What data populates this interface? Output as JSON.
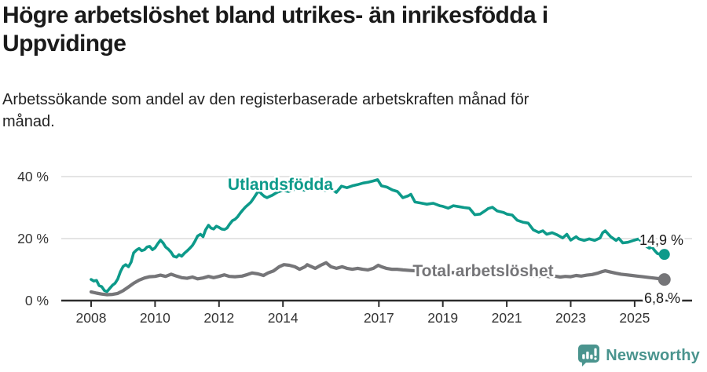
{
  "header": {
    "title": "Högre arbetslöshet bland utrikes- än inrikesfödda i\nUppvidinge",
    "subtitle": "Arbetssökande som andel av den registerbaserade arbetskraften månad för\nmånad."
  },
  "chart_data": {
    "type": "line",
    "title": "Högre arbetslöshet bland utrikes- än inrikesfödda i Uppvidinge",
    "xlabel": "",
    "ylabel": "Arbetssökande som andel av den registerbaserade arbetskraften",
    "x_axis": {
      "range": [
        2008,
        2026
      ],
      "tick_values": [
        2008,
        2010,
        2012,
        2014,
        2017,
        2019,
        2021,
        2023,
        2025
      ],
      "tick_labels": [
        "2008",
        "2010",
        "2012",
        "2014",
        "2017",
        "2019",
        "2021",
        "2023",
        "2025"
      ]
    },
    "y_axis": {
      "range": [
        0,
        42
      ],
      "tick_values": [
        0,
        20,
        40
      ],
      "tick_labels": [
        "0 %",
        "20 %",
        "40 %"
      ],
      "grid": true
    },
    "legend_position": "inline-labels",
    "series": [
      {
        "name": "Utlandsfödda",
        "color": "#0d9a8a",
        "end_label": "14,9 %",
        "end_value": 14.9,
        "points": [
          [
            2008.0,
            6.8
          ],
          [
            2008.08,
            6.3
          ],
          [
            2008.17,
            6.5
          ],
          [
            2008.25,
            4.8
          ],
          [
            2008.33,
            4.5
          ],
          [
            2008.42,
            3.2
          ],
          [
            2008.5,
            2.9
          ],
          [
            2008.58,
            3.9
          ],
          [
            2008.67,
            5.0
          ],
          [
            2008.75,
            5.6
          ],
          [
            2008.83,
            6.9
          ],
          [
            2008.92,
            9.4
          ],
          [
            2009.0,
            11.0
          ],
          [
            2009.08,
            11.6
          ],
          [
            2009.17,
            10.9
          ],
          [
            2009.25,
            12.4
          ],
          [
            2009.33,
            15.4
          ],
          [
            2009.42,
            16.3
          ],
          [
            2009.5,
            16.8
          ],
          [
            2009.58,
            16.1
          ],
          [
            2009.67,
            16.4
          ],
          [
            2009.75,
            17.3
          ],
          [
            2009.83,
            17.5
          ],
          [
            2009.92,
            16.4
          ],
          [
            2010.0,
            17.0
          ],
          [
            2010.08,
            18.3
          ],
          [
            2010.17,
            19.5
          ],
          [
            2010.25,
            18.6
          ],
          [
            2010.33,
            17.3
          ],
          [
            2010.42,
            16.5
          ],
          [
            2010.5,
            15.6
          ],
          [
            2010.58,
            14.3
          ],
          [
            2010.67,
            14.0
          ],
          [
            2010.75,
            14.8
          ],
          [
            2010.83,
            14.3
          ],
          [
            2010.92,
            15.3
          ],
          [
            2011.0,
            16.0
          ],
          [
            2011.08,
            16.8
          ],
          [
            2011.17,
            17.8
          ],
          [
            2011.25,
            19.2
          ],
          [
            2011.33,
            20.8
          ],
          [
            2011.42,
            21.4
          ],
          [
            2011.5,
            20.6
          ],
          [
            2011.58,
            22.8
          ],
          [
            2011.67,
            24.3
          ],
          [
            2011.75,
            23.4
          ],
          [
            2011.83,
            23.1
          ],
          [
            2011.92,
            24.0
          ],
          [
            2012.0,
            23.6
          ],
          [
            2012.08,
            23.1
          ],
          [
            2012.17,
            22.9
          ],
          [
            2012.25,
            23.4
          ],
          [
            2012.33,
            24.6
          ],
          [
            2012.42,
            25.8
          ],
          [
            2012.5,
            26.2
          ],
          [
            2012.58,
            27.0
          ],
          [
            2012.67,
            28.3
          ],
          [
            2012.75,
            29.3
          ],
          [
            2012.83,
            30.2
          ],
          [
            2012.92,
            31.0
          ],
          [
            2013.0,
            31.8
          ],
          [
            2013.08,
            33.0
          ],
          [
            2013.17,
            34.4
          ],
          [
            2013.25,
            35.4
          ],
          [
            2013.33,
            34.4
          ],
          [
            2013.42,
            33.6
          ],
          [
            2013.5,
            33.2
          ],
          [
            2013.58,
            33.6
          ],
          [
            2013.67,
            34.0
          ],
          [
            2013.75,
            34.5
          ],
          [
            2013.83,
            35.0
          ],
          [
            2013.92,
            35.3
          ],
          [
            2014.0,
            35.6
          ],
          [
            2014.17,
            35.2
          ],
          [
            2014.33,
            35.8
          ],
          [
            2014.5,
            36.2
          ],
          [
            2014.67,
            35.6
          ],
          [
            2014.83,
            36.0
          ],
          [
            2015.0,
            36.4
          ],
          [
            2015.17,
            36.0
          ],
          [
            2015.33,
            35.5
          ],
          [
            2015.5,
            36.1
          ],
          [
            2015.67,
            34.9
          ],
          [
            2015.83,
            36.9
          ],
          [
            2016.0,
            36.4
          ],
          [
            2016.17,
            37.0
          ],
          [
            2016.33,
            37.4
          ],
          [
            2016.5,
            37.9
          ],
          [
            2016.67,
            38.2
          ],
          [
            2016.83,
            38.6
          ],
          [
            2016.96,
            39.0
          ],
          [
            2017.08,
            37.0
          ],
          [
            2017.25,
            36.6
          ],
          [
            2017.42,
            35.7
          ],
          [
            2017.58,
            35.2
          ],
          [
            2017.75,
            33.2
          ],
          [
            2017.92,
            33.8
          ],
          [
            2018.0,
            34.3
          ],
          [
            2018.13,
            31.8
          ],
          [
            2018.3,
            31.5
          ],
          [
            2018.5,
            31.1
          ],
          [
            2018.7,
            31.4
          ],
          [
            2018.9,
            30.6
          ],
          [
            2019.0,
            30.4
          ],
          [
            2019.17,
            29.8
          ],
          [
            2019.33,
            30.6
          ],
          [
            2019.5,
            30.3
          ],
          [
            2019.67,
            30.0
          ],
          [
            2019.83,
            29.8
          ],
          [
            2020.0,
            27.7
          ],
          [
            2020.17,
            27.9
          ],
          [
            2020.33,
            29.0
          ],
          [
            2020.42,
            29.7
          ],
          [
            2020.55,
            30.1
          ],
          [
            2020.7,
            28.9
          ],
          [
            2020.9,
            28.4
          ],
          [
            2021.0,
            27.9
          ],
          [
            2021.17,
            27.6
          ],
          [
            2021.33,
            25.9
          ],
          [
            2021.5,
            25.3
          ],
          [
            2021.67,
            25.0
          ],
          [
            2021.83,
            22.8
          ],
          [
            2022.0,
            22.0
          ],
          [
            2022.13,
            22.5
          ],
          [
            2022.25,
            21.4
          ],
          [
            2022.42,
            21.9
          ],
          [
            2022.58,
            21.2
          ],
          [
            2022.75,
            20.2
          ],
          [
            2022.88,
            21.4
          ],
          [
            2023.0,
            19.5
          ],
          [
            2023.17,
            20.6
          ],
          [
            2023.25,
            19.9
          ],
          [
            2023.42,
            19.4
          ],
          [
            2023.58,
            19.9
          ],
          [
            2023.75,
            19.4
          ],
          [
            2023.92,
            20.2
          ],
          [
            2024.0,
            21.9
          ],
          [
            2024.08,
            22.5
          ],
          [
            2024.25,
            20.6
          ],
          [
            2024.42,
            19.4
          ],
          [
            2024.5,
            20.1
          ],
          [
            2024.63,
            18.6
          ],
          [
            2024.79,
            18.8
          ],
          [
            2024.96,
            19.4
          ],
          [
            2025.13,
            19.9
          ],
          [
            2025.29,
            18.2
          ],
          [
            2025.38,
            17.4
          ],
          [
            2025.46,
            16.9
          ],
          [
            2025.54,
            17.3
          ],
          [
            2025.63,
            16.1
          ],
          [
            2025.71,
            15.2
          ],
          [
            2025.83,
            14.8
          ],
          [
            2025.93,
            14.9
          ]
        ]
      },
      {
        "name": "Total arbetslöshet",
        "color": "#757578",
        "end_label": "6,8 %",
        "end_value": 6.8,
        "points": [
          [
            2008.0,
            2.8
          ],
          [
            2008.17,
            2.4
          ],
          [
            2008.33,
            2.1
          ],
          [
            2008.5,
            1.9
          ],
          [
            2008.67,
            2.0
          ],
          [
            2008.83,
            2.3
          ],
          [
            2009.0,
            3.2
          ],
          [
            2009.17,
            4.4
          ],
          [
            2009.33,
            5.6
          ],
          [
            2009.5,
            6.6
          ],
          [
            2009.67,
            7.3
          ],
          [
            2009.83,
            7.7
          ],
          [
            2010.0,
            7.8
          ],
          [
            2010.17,
            8.2
          ],
          [
            2010.33,
            7.8
          ],
          [
            2010.5,
            8.5
          ],
          [
            2010.67,
            7.9
          ],
          [
            2010.83,
            7.4
          ],
          [
            2011.0,
            7.2
          ],
          [
            2011.17,
            7.6
          ],
          [
            2011.33,
            7.0
          ],
          [
            2011.5,
            7.3
          ],
          [
            2011.67,
            7.8
          ],
          [
            2011.83,
            7.4
          ],
          [
            2012.0,
            7.8
          ],
          [
            2012.17,
            8.3
          ],
          [
            2012.33,
            7.8
          ],
          [
            2012.5,
            7.7
          ],
          [
            2012.72,
            7.9
          ],
          [
            2012.89,
            8.4
          ],
          [
            2013.04,
            8.9
          ],
          [
            2013.22,
            8.6
          ],
          [
            2013.39,
            8.1
          ],
          [
            2013.53,
            8.9
          ],
          [
            2013.71,
            9.6
          ],
          [
            2013.88,
            10.9
          ],
          [
            2014.03,
            11.6
          ],
          [
            2014.2,
            11.4
          ],
          [
            2014.37,
            10.9
          ],
          [
            2014.52,
            10.1
          ],
          [
            2014.69,
            10.9
          ],
          [
            2014.76,
            11.6
          ],
          [
            2014.86,
            11.1
          ],
          [
            2015.01,
            10.4
          ],
          [
            2015.18,
            11.4
          ],
          [
            2015.35,
            12.2
          ],
          [
            2015.5,
            10.9
          ],
          [
            2015.67,
            10.4
          ],
          [
            2015.85,
            10.9
          ],
          [
            2016.0,
            10.4
          ],
          [
            2016.17,
            10.1
          ],
          [
            2016.34,
            10.4
          ],
          [
            2016.49,
            10.1
          ],
          [
            2016.66,
            9.9
          ],
          [
            2016.83,
            10.4
          ],
          [
            2016.98,
            11.4
          ],
          [
            2017.08,
            10.9
          ],
          [
            2017.23,
            10.4
          ],
          [
            2017.4,
            10.1
          ],
          [
            2017.57,
            10.1
          ],
          [
            2017.75,
            9.9
          ],
          [
            2018.0,
            9.7
          ],
          [
            2018.33,
            9.5
          ],
          [
            2018.67,
            9.3
          ],
          [
            2019.0,
            9.1
          ],
          [
            2019.33,
            9.0
          ],
          [
            2019.67,
            8.9
          ],
          [
            2020.0,
            8.8
          ],
          [
            2020.33,
            9.1
          ],
          [
            2020.67,
            8.9
          ],
          [
            2021.0,
            8.6
          ],
          [
            2021.33,
            8.3
          ],
          [
            2021.67,
            8.0
          ],
          [
            2022.0,
            7.8
          ],
          [
            2022.17,
            8.0
          ],
          [
            2022.33,
            7.7
          ],
          [
            2022.5,
            7.9
          ],
          [
            2022.67,
            7.6
          ],
          [
            2022.83,
            7.8
          ],
          [
            2023.0,
            7.7
          ],
          [
            2023.17,
            8.1
          ],
          [
            2023.33,
            7.9
          ],
          [
            2023.5,
            8.2
          ],
          [
            2023.67,
            8.4
          ],
          [
            2023.83,
            8.8
          ],
          [
            2024.0,
            9.4
          ],
          [
            2024.08,
            9.6
          ],
          [
            2024.25,
            9.2
          ],
          [
            2024.42,
            8.8
          ],
          [
            2024.58,
            8.5
          ],
          [
            2024.75,
            8.3
          ],
          [
            2024.92,
            8.1
          ],
          [
            2025.08,
            7.9
          ],
          [
            2025.25,
            7.7
          ],
          [
            2025.42,
            7.5
          ],
          [
            2025.58,
            7.3
          ],
          [
            2025.75,
            7.1
          ],
          [
            2025.93,
            6.8
          ]
        ]
      }
    ],
    "colors": {
      "grid": "#dcdcdc",
      "axis": "#2d2d2d",
      "tick_text": "#333333",
      "end_label_text": "#1a1a1a"
    }
  },
  "footer": {
    "brand": "Newsworthy",
    "brand_color": "#4a948e",
    "logo_icon": "bar-chart-speech-bubble-icon"
  }
}
